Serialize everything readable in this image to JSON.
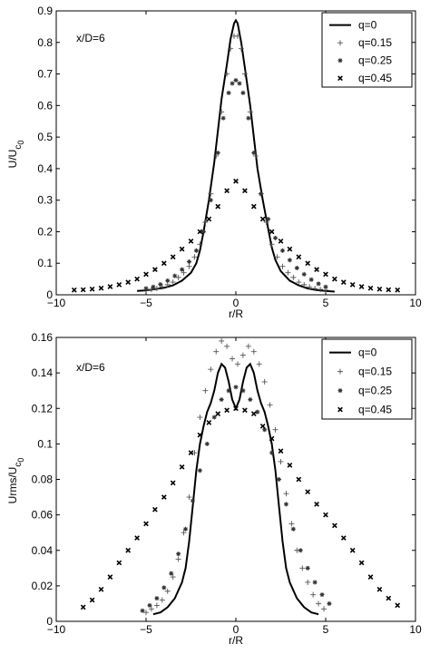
{
  "chart_data": [
    {
      "type": "line",
      "annotation": "x/D=6",
      "xlabel": "r/R",
      "ylabel_main": "U/U",
      "ylabel_sub": "c",
      "ylabel_sub2": "0",
      "xlim": [
        -10,
        10
      ],
      "ylim": [
        0,
        0.9
      ],
      "xticks": [
        "−10",
        "−5",
        "0",
        "5",
        "10"
      ],
      "xtick_values": [
        -10,
        -5,
        0,
        5,
        10
      ],
      "yticks": [
        "0",
        "0.1",
        "0.2",
        "0.3",
        "0.4",
        "0.5",
        "0.6",
        "0.7",
        "0.8",
        "0.9"
      ],
      "ytick_values": [
        0,
        0.1,
        0.2,
        0.3,
        0.4,
        0.5,
        0.6,
        0.7,
        0.8,
        0.9
      ],
      "legend_position": "top-right",
      "series": [
        {
          "name": "q=0",
          "marker": "line",
          "x": [
            -5.5,
            -5,
            -4.5,
            -4,
            -3.5,
            -3,
            -2.5,
            -2.2,
            -2,
            -1.8,
            -1.5,
            -1.2,
            -1,
            -0.8,
            -0.5,
            -0.3,
            -0.1,
            0,
            0.1,
            0.3,
            0.5,
            0.8,
            1,
            1.2,
            1.5,
            1.8,
            2,
            2.2,
            2.5,
            3,
            3.5,
            4,
            4.5,
            5,
            5.5
          ],
          "y": [
            0.012,
            0.014,
            0.018,
            0.022,
            0.03,
            0.045,
            0.07,
            0.1,
            0.14,
            0.2,
            0.3,
            0.42,
            0.52,
            0.62,
            0.73,
            0.81,
            0.86,
            0.87,
            0.86,
            0.8,
            0.72,
            0.6,
            0.5,
            0.4,
            0.3,
            0.21,
            0.15,
            0.11,
            0.075,
            0.045,
            0.03,
            0.02,
            0.015,
            0.012,
            0.01
          ]
        },
        {
          "name": "q=0.15",
          "marker": "+",
          "x": [
            -5,
            -4.7,
            -4.4,
            -4.1,
            -3.8,
            -3.5,
            -3.2,
            -2.9,
            -2.6,
            -2.3,
            -2,
            -1.7,
            -1.4,
            -1.1,
            -0.8,
            -0.5,
            -0.3,
            -0.1,
            0.1,
            0.3,
            0.5,
            0.8,
            1.1,
            1.4,
            1.7,
            2,
            2.3,
            2.6,
            2.9,
            3.2,
            3.5,
            3.8,
            4.1,
            4.4,
            4.7,
            5
          ],
          "y": [
            0.015,
            0.017,
            0.02,
            0.025,
            0.032,
            0.04,
            0.055,
            0.07,
            0.09,
            0.12,
            0.16,
            0.23,
            0.32,
            0.44,
            0.58,
            0.7,
            0.78,
            0.82,
            0.82,
            0.78,
            0.7,
            0.58,
            0.44,
            0.32,
            0.23,
            0.16,
            0.12,
            0.09,
            0.07,
            0.055,
            0.04,
            0.032,
            0.025,
            0.02,
            0.017,
            0.015
          ]
        },
        {
          "name": "q=0.25",
          "marker": "*",
          "x": [
            -5,
            -4.6,
            -4.2,
            -3.8,
            -3.4,
            -3,
            -2.6,
            -2.2,
            -1.8,
            -1.4,
            -1,
            -0.7,
            -0.4,
            -0.2,
            0,
            0.2,
            0.4,
            0.7,
            1,
            1.4,
            1.8,
            2.2,
            2.6,
            3,
            3.4,
            3.8,
            4.2,
            4.6,
            5
          ],
          "y": [
            0.02,
            0.025,
            0.033,
            0.045,
            0.06,
            0.08,
            0.105,
            0.14,
            0.2,
            0.3,
            0.45,
            0.56,
            0.64,
            0.67,
            0.68,
            0.67,
            0.64,
            0.56,
            0.45,
            0.32,
            0.24,
            0.18,
            0.14,
            0.11,
            0.085,
            0.065,
            0.048,
            0.035,
            0.025
          ]
        },
        {
          "name": "q=0.45",
          "marker": "x",
          "x": [
            -9,
            -8.5,
            -8,
            -7.5,
            -7,
            -6.5,
            -6,
            -5.5,
            -5,
            -4.5,
            -4,
            -3.5,
            -3,
            -2.5,
            -2,
            -1.5,
            -1,
            -0.5,
            0,
            0.5,
            1,
            1.5,
            2,
            2.5,
            3,
            3.5,
            4,
            4.5,
            5,
            5.5,
            6,
            6.5,
            7,
            7.5,
            8,
            8.5,
            9
          ],
          "y": [
            0.015,
            0.016,
            0.018,
            0.021,
            0.026,
            0.032,
            0.04,
            0.05,
            0.065,
            0.08,
            0.1,
            0.12,
            0.145,
            0.17,
            0.2,
            0.24,
            0.28,
            0.33,
            0.36,
            0.33,
            0.28,
            0.24,
            0.2,
            0.17,
            0.145,
            0.12,
            0.1,
            0.08,
            0.065,
            0.05,
            0.04,
            0.032,
            0.026,
            0.021,
            0.018,
            0.016,
            0.015
          ]
        }
      ]
    },
    {
      "type": "line",
      "annotation": "x/D=6",
      "xlabel": "r/R",
      "ylabel_main": "Urms/U",
      "ylabel_sub": "c",
      "ylabel_sub2": "0",
      "xlim": [
        -10,
        10
      ],
      "ylim": [
        0,
        0.16
      ],
      "xticks": [
        "−10",
        "−5",
        "0",
        "5",
        "10"
      ],
      "xtick_values": [
        -10,
        -5,
        0,
        5,
        10
      ],
      "yticks": [
        "0",
        "0.02",
        "0.04",
        "0.06",
        "0.08",
        "0.1",
        "0.12",
        "0.14",
        "0.16"
      ],
      "ytick_values": [
        0,
        0.02,
        0.04,
        0.06,
        0.08,
        0.1,
        0.12,
        0.14,
        0.16
      ],
      "legend_position": "top-right",
      "series": [
        {
          "name": "q=0",
          "marker": "line",
          "x": [
            -4.6,
            -4.2,
            -3.8,
            -3.4,
            -3,
            -2.8,
            -2.6,
            -2.4,
            -2.2,
            -2,
            -1.8,
            -1.6,
            -1.4,
            -1.2,
            -1,
            -0.8,
            -0.6,
            -0.4,
            -0.2,
            0,
            0.2,
            0.4,
            0.6,
            0.8,
            1,
            1.2,
            1.4,
            1.6,
            1.8,
            2,
            2.2,
            2.4,
            2.6,
            2.8,
            3,
            3.4,
            3.8,
            4.2,
            4.6
          ],
          "y": [
            0.004,
            0.005,
            0.008,
            0.013,
            0.022,
            0.03,
            0.045,
            0.065,
            0.085,
            0.1,
            0.11,
            0.118,
            0.123,
            0.13,
            0.14,
            0.145,
            0.143,
            0.135,
            0.125,
            0.12,
            0.125,
            0.135,
            0.143,
            0.145,
            0.14,
            0.13,
            0.123,
            0.118,
            0.11,
            0.1,
            0.085,
            0.065,
            0.045,
            0.03,
            0.022,
            0.013,
            0.008,
            0.005,
            0.004
          ]
        },
        {
          "name": "q=0.15",
          "marker": "+",
          "x": [
            -5,
            -4.7,
            -4.4,
            -4.1,
            -3.8,
            -3.5,
            -3.2,
            -2.9,
            -2.6,
            -2.3,
            -2,
            -1.7,
            -1.4,
            -1.1,
            -0.8,
            -0.5,
            -0.2,
            0.1,
            0.4,
            0.7,
            1,
            1.3,
            1.6,
            1.9,
            2.2,
            2.5,
            2.8,
            3.1,
            3.4,
            3.7,
            4,
            4.3,
            4.6,
            4.9
          ],
          "y": [
            0.005,
            0.007,
            0.009,
            0.012,
            0.017,
            0.025,
            0.035,
            0.05,
            0.07,
            0.095,
            0.115,
            0.13,
            0.142,
            0.152,
            0.158,
            0.155,
            0.148,
            0.145,
            0.15,
            0.155,
            0.152,
            0.145,
            0.135,
            0.122,
            0.108,
            0.09,
            0.072,
            0.055,
            0.04,
            0.03,
            0.022,
            0.015,
            0.01,
            0.007
          ]
        },
        {
          "name": "q=0.25",
          "marker": "*",
          "x": [
            -5.2,
            -4.8,
            -4.4,
            -4,
            -3.6,
            -3.2,
            -2.8,
            -2.4,
            -2,
            -1.6,
            -1.2,
            -0.8,
            -0.4,
            0,
            0.4,
            0.8,
            1.2,
            1.6,
            2,
            2.4,
            2.8,
            3.2,
            3.6,
            4,
            4.4,
            4.8,
            5.2
          ],
          "y": [
            0.006,
            0.009,
            0.013,
            0.019,
            0.027,
            0.038,
            0.052,
            0.068,
            0.085,
            0.1,
            0.115,
            0.125,
            0.13,
            0.132,
            0.13,
            0.125,
            0.118,
            0.108,
            0.095,
            0.08,
            0.066,
            0.052,
            0.04,
            0.03,
            0.022,
            0.015,
            0.01
          ]
        },
        {
          "name": "q=0.45",
          "marker": "x",
          "x": [
            -8.5,
            -8,
            -7.5,
            -7,
            -6.5,
            -6,
            -5.5,
            -5,
            -4.5,
            -4,
            -3.5,
            -3,
            -2.5,
            -2,
            -1.5,
            -1,
            -0.5,
            0,
            0.5,
            1,
            1.5,
            2,
            2.5,
            3,
            3.5,
            4,
            4.5,
            5,
            5.5,
            6,
            6.5,
            7,
            7.5,
            8,
            8.5,
            9
          ],
          "y": [
            0.008,
            0.012,
            0.018,
            0.025,
            0.033,
            0.04,
            0.047,
            0.055,
            0.063,
            0.07,
            0.078,
            0.087,
            0.095,
            0.105,
            0.112,
            0.117,
            0.119,
            0.12,
            0.119,
            0.117,
            0.11,
            0.103,
            0.096,
            0.088,
            0.08,
            0.073,
            0.066,
            0.06,
            0.054,
            0.047,
            0.04,
            0.033,
            0.025,
            0.018,
            0.013,
            0.009
          ]
        }
      ]
    }
  ]
}
